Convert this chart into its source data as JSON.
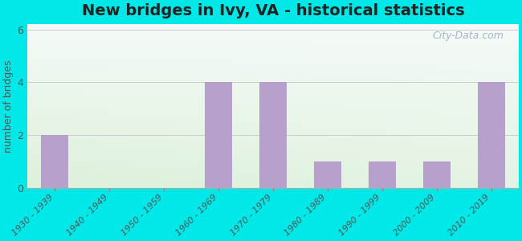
{
  "title": "New bridges in Ivy, VA - historical statistics",
  "categories": [
    "1930 - 1939",
    "1940 - 1949",
    "1950 - 1959",
    "1960 - 1969",
    "1970 - 1979",
    "1980 - 1989",
    "1990 - 1999",
    "2000 - 2009",
    "2010 - 2019"
  ],
  "values": [
    2,
    0,
    0,
    4,
    4,
    1,
    1,
    1,
    4
  ],
  "bar_color": "#b8a0cc",
  "ylabel": "number of bridges",
  "ylim": [
    0,
    6.2
  ],
  "yticks": [
    0,
    2,
    4,
    6
  ],
  "bg_outer": "#00e8e8",
  "grid_color": "#cccccc",
  "title_fontsize": 14,
  "axis_label_fontsize": 9,
  "tick_fontsize": 8,
  "watermark_text": "City-Data.com",
  "watermark_color": "#99aabb",
  "bar_width": 0.5
}
